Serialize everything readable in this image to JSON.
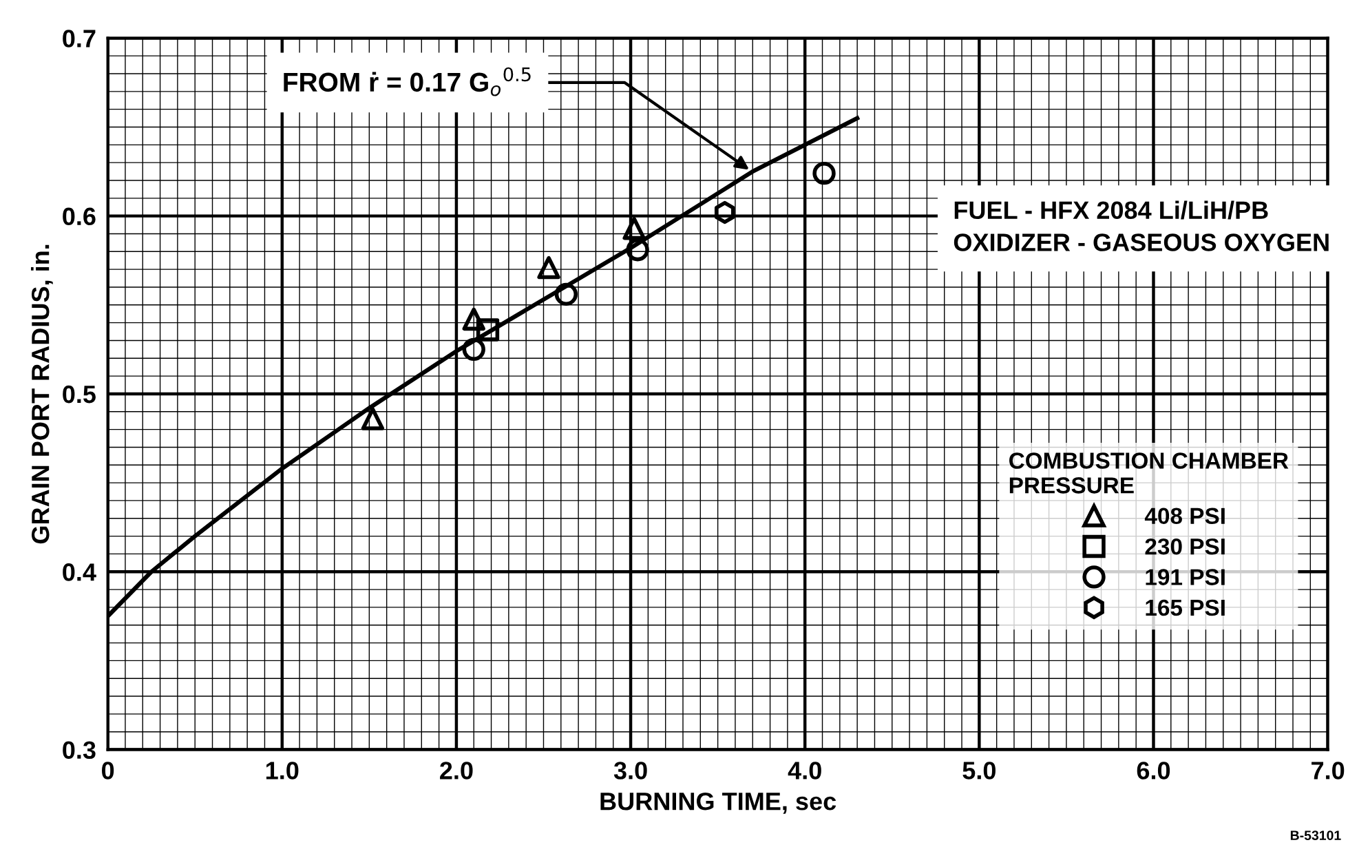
{
  "chart_data": {
    "type": "scatter",
    "xlabel": "BURNING TIME, sec",
    "ylabel": "GRAIN PORT RADIUS, in.",
    "legend_title": "COMBUSTION CHAMBER\nPRESSURE",
    "xlim": [
      0,
      7
    ],
    "ylim": [
      0.3,
      0.7
    ],
    "xticks": [
      {
        "value": 0,
        "label": "0"
      },
      {
        "value": 1,
        "label": "1.0"
      },
      {
        "value": 2,
        "label": "2.0"
      },
      {
        "value": 3,
        "label": "3.0"
      },
      {
        "value": 4,
        "label": "4.0"
      },
      {
        "value": 5,
        "label": "5.0"
      },
      {
        "value": 6,
        "label": "6.0"
      },
      {
        "value": 7,
        "label": "7.0"
      }
    ],
    "yticks": [
      0.3,
      0.4,
      0.5,
      0.6,
      0.7
    ],
    "grid": true,
    "legend": "right",
    "series": [
      {
        "name": "408 PSI",
        "color": "#000000",
        "marker": "triangle",
        "x": [
          1.52,
          2.1,
          2.53,
          3.02
        ],
        "values": [
          0.486,
          0.542,
          0.571,
          0.593
        ]
      },
      {
        "name": "230 PSI",
        "color": "#000000",
        "marker": "square",
        "x": [
          2.18
        ],
        "values": [
          0.536
        ]
      },
      {
        "name": "191 PSI",
        "color": "#000000",
        "marker": "circle",
        "x": [
          2.1,
          2.63,
          3.04,
          4.11
        ],
        "values": [
          0.525,
          0.556,
          0.581,
          0.624
        ]
      },
      {
        "name": "165 PSI",
        "color": "#000000",
        "x": [
          3.54
        ],
        "values": [
          0.602
        ]
      },
      {
        "type": "line",
        "color": "#000000",
        "marker": "none",
        "line_style": "solid",
        "x": [
          0,
          0.25,
          0.5,
          1.0,
          1.5,
          2.0,
          3.0,
          3.7,
          4.3
        ],
        "values": [
          0.375,
          0.4,
          0.42,
          0.458,
          0.492,
          0.524,
          0.582,
          0.625,
          0.655
        ]
      }
    ],
    "annotations": [
      {
        "text": "FROM ṙ = 0.17 G$_{o}$$^{0.5}$",
        "x": 3.68,
        "y": 0.626
      },
      "FUEL - HFX 2084 Li/LiH/PB\nOXIDIZER - GASEOUS OXYGEN",
      "B-53101"
    ]
  }
}
